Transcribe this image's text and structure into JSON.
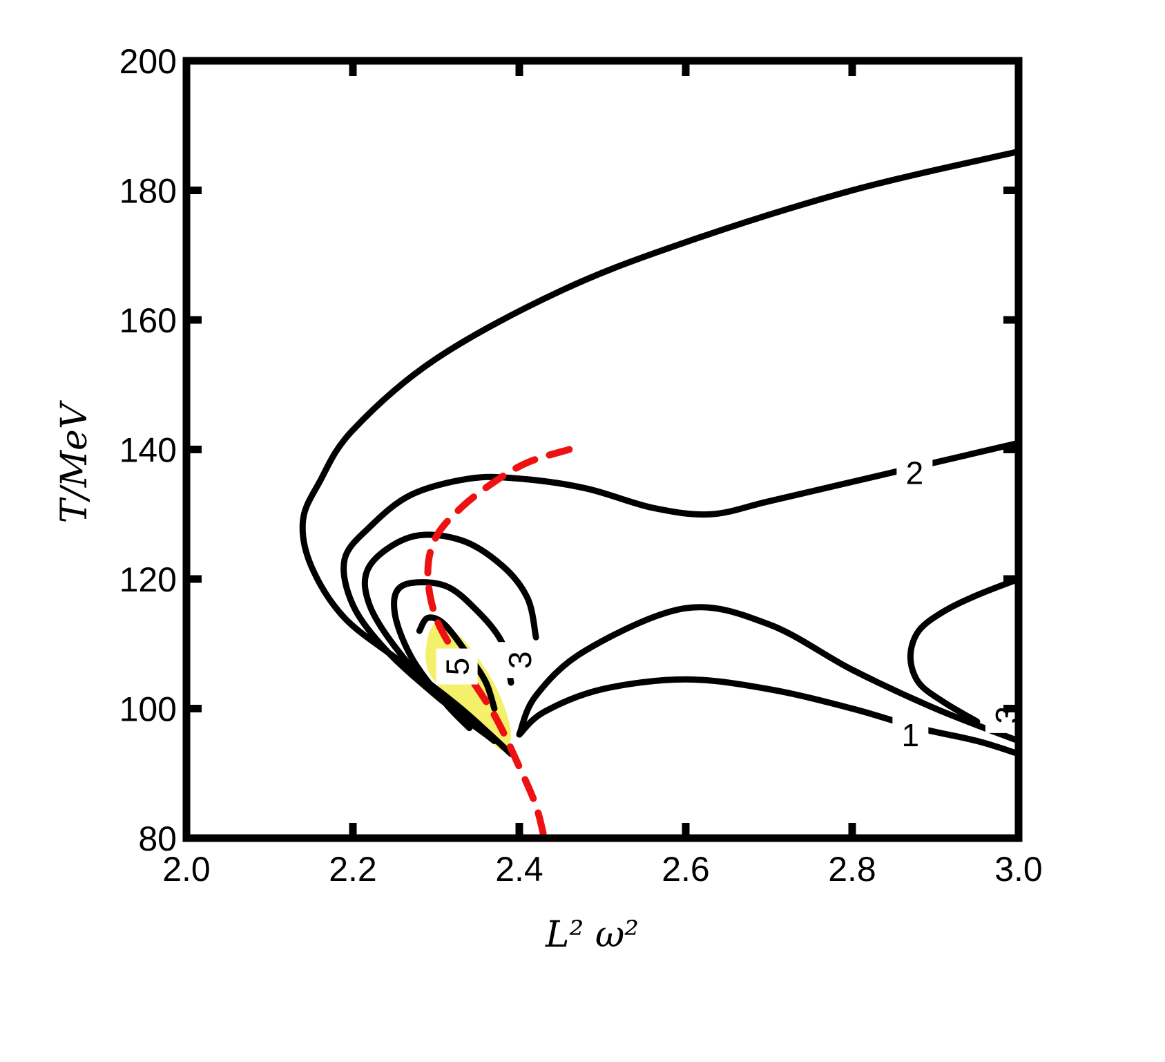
{
  "chart_data": {
    "type": "line",
    "subtype": "contour",
    "title": "",
    "xlabel": "L² ω²",
    "ylabel": "T/MeV",
    "xlim": [
      2.0,
      3.0
    ],
    "ylim": [
      80,
      200
    ],
    "xticks": [
      2.0,
      2.2,
      2.4,
      2.6,
      2.8,
      3.0
    ],
    "xtick_labels": [
      "2.0",
      "2.2",
      "2.4",
      "2.6",
      "2.8",
      "3.0"
    ],
    "yticks": [
      80,
      100,
      120,
      140,
      160,
      180,
      200
    ],
    "ytick_labels": [
      "80",
      "100",
      "120",
      "140",
      "160",
      "180",
      "200"
    ],
    "grid": false,
    "legend": "none",
    "colors": {
      "contour": "#000000",
      "dashed": "#ee1111",
      "fill": "#f4f06a"
    },
    "series": [
      {
        "style": "solid",
        "points": [
          [
            3.0,
            186
          ],
          [
            2.8,
            180
          ],
          [
            2.6,
            172
          ],
          [
            2.45,
            164.5
          ],
          [
            2.3,
            154
          ],
          [
            2.2,
            143
          ],
          [
            2.16,
            135
          ],
          [
            2.14,
            129
          ],
          [
            2.15,
            122
          ],
          [
            2.19,
            114
          ],
          [
            2.26,
            107
          ],
          [
            2.33,
            100
          ],
          [
            2.39,
            93
          ]
        ]
      },
      {
        "style": "solid",
        "points": [
          [
            3.0,
            141
          ],
          [
            2.9,
            138
          ],
          [
            2.85,
            136.5
          ],
          [
            2.8,
            135
          ],
          [
            2.7,
            132
          ],
          [
            2.63,
            130
          ],
          [
            2.56,
            131
          ],
          [
            2.48,
            134
          ],
          [
            2.4,
            135.5
          ],
          [
            2.34,
            135.5
          ],
          [
            2.27,
            133
          ],
          [
            2.22,
            128
          ],
          [
            2.19,
            123
          ],
          [
            2.2,
            116
          ],
          [
            2.24,
            109
          ],
          [
            2.3,
            102
          ],
          [
            2.34,
            98
          ],
          [
            2.37,
            95
          ]
        ]
      },
      {
        "style": "solid",
        "points": [
          [
            2.42,
            111
          ],
          [
            2.41,
            117
          ],
          [
            2.38,
            122
          ],
          [
            2.33,
            126
          ],
          [
            2.27,
            126.5
          ],
          [
            2.22,
            122
          ],
          [
            2.22,
            116
          ],
          [
            2.26,
            108
          ],
          [
            2.32,
            100
          ],
          [
            2.36,
            96
          ]
        ]
      },
      {
        "style": "solid",
        "points": [
          [
            2.39,
            104
          ],
          [
            2.38,
            110
          ],
          [
            2.35,
            115
          ],
          [
            2.31,
            119
          ],
          [
            2.26,
            119
          ],
          [
            2.25,
            115
          ],
          [
            2.27,
            108
          ],
          [
            2.31,
            101
          ],
          [
            2.34,
            97
          ]
        ]
      },
      {
        "style": "solid",
        "points": [
          [
            2.37,
            100
          ],
          [
            2.36,
            104
          ],
          [
            2.34,
            108
          ],
          [
            2.31,
            113
          ],
          [
            2.29,
            114
          ],
          [
            2.28,
            112
          ]
        ]
      },
      {
        "style": "solid",
        "points": [
          [
            2.4,
            96
          ],
          [
            2.42,
            102
          ],
          [
            2.48,
            109
          ],
          [
            2.6,
            115.5
          ],
          [
            2.7,
            113
          ],
          [
            2.8,
            106
          ],
          [
            2.9,
            100
          ],
          [
            3.0,
            95
          ]
        ]
      },
      {
        "style": "solid",
        "points": [
          [
            2.4,
            96
          ],
          [
            2.43,
            99.5
          ],
          [
            2.5,
            103
          ],
          [
            2.6,
            104.5
          ],
          [
            2.7,
            103
          ],
          [
            2.8,
            100
          ],
          [
            2.88,
            97
          ],
          [
            2.95,
            95
          ],
          [
            3.0,
            93
          ]
        ]
      },
      {
        "style": "solid",
        "points": [
          [
            2.95,
            98
          ],
          [
            2.91,
            101
          ],
          [
            2.88,
            104
          ],
          [
            2.87,
            108
          ],
          [
            2.88,
            112
          ],
          [
            2.91,
            115
          ],
          [
            2.95,
            117.5
          ],
          [
            3.0,
            120
          ]
        ]
      },
      {
        "style": "dashed",
        "points": [
          [
            2.46,
            140
          ],
          [
            2.41,
            138
          ],
          [
            2.37,
            135
          ],
          [
            2.33,
            131
          ],
          [
            2.3,
            126.5
          ],
          [
            2.29,
            121
          ],
          [
            2.3,
            114
          ],
          [
            2.33,
            107
          ],
          [
            2.37,
            99
          ],
          [
            2.4,
            91
          ],
          [
            2.42,
            85
          ],
          [
            2.43,
            80
          ]
        ]
      }
    ],
    "contour_labels": [
      {
        "text": "2",
        "x": 2.875,
        "y": 136.5,
        "rotate": 0
      },
      {
        "text": "1",
        "x": 2.87,
        "y": 96,
        "rotate": 0
      },
      {
        "text": "3",
        "x": 2.4,
        "y": 107.5,
        "rotate": -90
      },
      {
        "text": "5",
        "x": 2.325,
        "y": 106.5,
        "rotate": -90
      },
      {
        "text": "3",
        "x": 2.985,
        "y": 99,
        "rotate": -90
      }
    ]
  }
}
